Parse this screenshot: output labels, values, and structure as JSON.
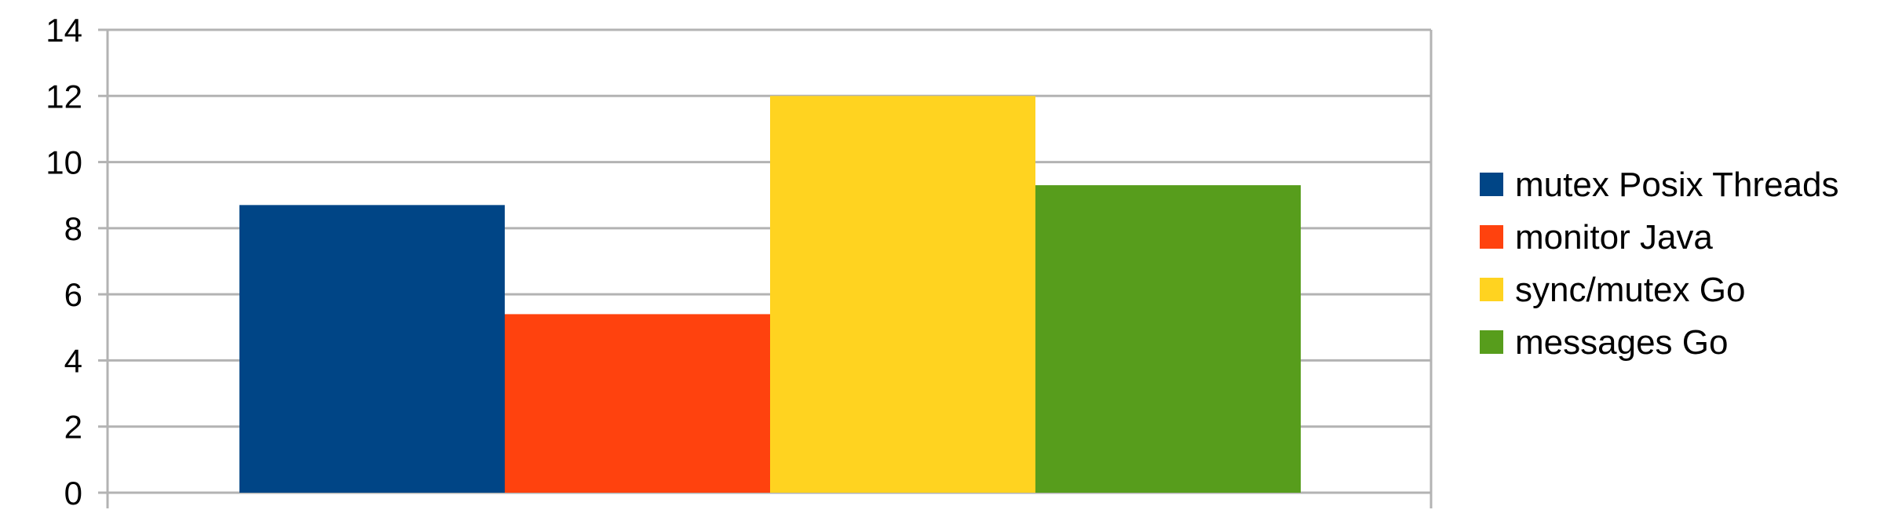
{
  "chart_data": {
    "type": "bar",
    "title": "",
    "xlabel": "",
    "ylabel": "",
    "ylim": [
      0,
      14
    ],
    "yticks": [
      0,
      2,
      4,
      6,
      8,
      10,
      12,
      14
    ],
    "grid": true,
    "legend_position": "right",
    "categories": [
      ""
    ],
    "series": [
      {
        "name": "mutex Posix Threads",
        "values": [
          8.7
        ],
        "color": "#004586"
      },
      {
        "name": "monitor Java",
        "values": [
          5.4
        ],
        "color": "#ff420e"
      },
      {
        "name": "sync/mutex Go",
        "values": [
          12.0
        ],
        "color": "#ffd320"
      },
      {
        "name": "messages Go",
        "values": [
          9.3
        ],
        "color": "#579d1c"
      }
    ]
  }
}
